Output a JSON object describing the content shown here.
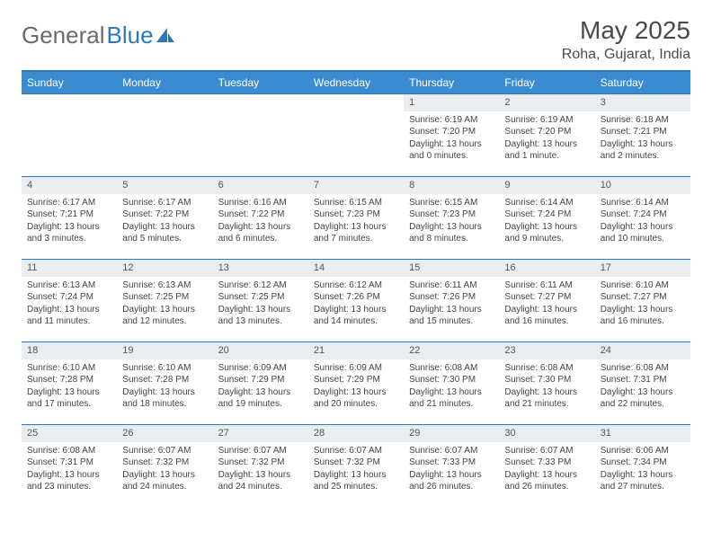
{
  "logo": {
    "word1": "General",
    "word2": "Blue",
    "gray": "#6b6b6b",
    "blue": "#2b78bf"
  },
  "title": {
    "month": "May 2025",
    "location": "Roha, Gujarat, India"
  },
  "colors": {
    "header_bg": "#3b8bd1",
    "header_text": "#ffffff",
    "border": "#2b78bf",
    "daynum_bg": "#e9edf0",
    "text": "#444444"
  },
  "day_headers": [
    "Sunday",
    "Monday",
    "Tuesday",
    "Wednesday",
    "Thursday",
    "Friday",
    "Saturday"
  ],
  "weeks": [
    [
      {
        "n": "",
        "sr": "",
        "ss": "",
        "dl": ""
      },
      {
        "n": "",
        "sr": "",
        "ss": "",
        "dl": ""
      },
      {
        "n": "",
        "sr": "",
        "ss": "",
        "dl": ""
      },
      {
        "n": "",
        "sr": "",
        "ss": "",
        "dl": ""
      },
      {
        "n": "1",
        "sr": "Sunrise: 6:19 AM",
        "ss": "Sunset: 7:20 PM",
        "dl": "Daylight: 13 hours and 0 minutes."
      },
      {
        "n": "2",
        "sr": "Sunrise: 6:19 AM",
        "ss": "Sunset: 7:20 PM",
        "dl": "Daylight: 13 hours and 1 minute."
      },
      {
        "n": "3",
        "sr": "Sunrise: 6:18 AM",
        "ss": "Sunset: 7:21 PM",
        "dl": "Daylight: 13 hours and 2 minutes."
      }
    ],
    [
      {
        "n": "4",
        "sr": "Sunrise: 6:17 AM",
        "ss": "Sunset: 7:21 PM",
        "dl": "Daylight: 13 hours and 3 minutes."
      },
      {
        "n": "5",
        "sr": "Sunrise: 6:17 AM",
        "ss": "Sunset: 7:22 PM",
        "dl": "Daylight: 13 hours and 5 minutes."
      },
      {
        "n": "6",
        "sr": "Sunrise: 6:16 AM",
        "ss": "Sunset: 7:22 PM",
        "dl": "Daylight: 13 hours and 6 minutes."
      },
      {
        "n": "7",
        "sr": "Sunrise: 6:15 AM",
        "ss": "Sunset: 7:23 PM",
        "dl": "Daylight: 13 hours and 7 minutes."
      },
      {
        "n": "8",
        "sr": "Sunrise: 6:15 AM",
        "ss": "Sunset: 7:23 PM",
        "dl": "Daylight: 13 hours and 8 minutes."
      },
      {
        "n": "9",
        "sr": "Sunrise: 6:14 AM",
        "ss": "Sunset: 7:24 PM",
        "dl": "Daylight: 13 hours and 9 minutes."
      },
      {
        "n": "10",
        "sr": "Sunrise: 6:14 AM",
        "ss": "Sunset: 7:24 PM",
        "dl": "Daylight: 13 hours and 10 minutes."
      }
    ],
    [
      {
        "n": "11",
        "sr": "Sunrise: 6:13 AM",
        "ss": "Sunset: 7:24 PM",
        "dl": "Daylight: 13 hours and 11 minutes."
      },
      {
        "n": "12",
        "sr": "Sunrise: 6:13 AM",
        "ss": "Sunset: 7:25 PM",
        "dl": "Daylight: 13 hours and 12 minutes."
      },
      {
        "n": "13",
        "sr": "Sunrise: 6:12 AM",
        "ss": "Sunset: 7:25 PM",
        "dl": "Daylight: 13 hours and 13 minutes."
      },
      {
        "n": "14",
        "sr": "Sunrise: 6:12 AM",
        "ss": "Sunset: 7:26 PM",
        "dl": "Daylight: 13 hours and 14 minutes."
      },
      {
        "n": "15",
        "sr": "Sunrise: 6:11 AM",
        "ss": "Sunset: 7:26 PM",
        "dl": "Daylight: 13 hours and 15 minutes."
      },
      {
        "n": "16",
        "sr": "Sunrise: 6:11 AM",
        "ss": "Sunset: 7:27 PM",
        "dl": "Daylight: 13 hours and 16 minutes."
      },
      {
        "n": "17",
        "sr": "Sunrise: 6:10 AM",
        "ss": "Sunset: 7:27 PM",
        "dl": "Daylight: 13 hours and 16 minutes."
      }
    ],
    [
      {
        "n": "18",
        "sr": "Sunrise: 6:10 AM",
        "ss": "Sunset: 7:28 PM",
        "dl": "Daylight: 13 hours and 17 minutes."
      },
      {
        "n": "19",
        "sr": "Sunrise: 6:10 AM",
        "ss": "Sunset: 7:28 PM",
        "dl": "Daylight: 13 hours and 18 minutes."
      },
      {
        "n": "20",
        "sr": "Sunrise: 6:09 AM",
        "ss": "Sunset: 7:29 PM",
        "dl": "Daylight: 13 hours and 19 minutes."
      },
      {
        "n": "21",
        "sr": "Sunrise: 6:09 AM",
        "ss": "Sunset: 7:29 PM",
        "dl": "Daylight: 13 hours and 20 minutes."
      },
      {
        "n": "22",
        "sr": "Sunrise: 6:08 AM",
        "ss": "Sunset: 7:30 PM",
        "dl": "Daylight: 13 hours and 21 minutes."
      },
      {
        "n": "23",
        "sr": "Sunrise: 6:08 AM",
        "ss": "Sunset: 7:30 PM",
        "dl": "Daylight: 13 hours and 21 minutes."
      },
      {
        "n": "24",
        "sr": "Sunrise: 6:08 AM",
        "ss": "Sunset: 7:31 PM",
        "dl": "Daylight: 13 hours and 22 minutes."
      }
    ],
    [
      {
        "n": "25",
        "sr": "Sunrise: 6:08 AM",
        "ss": "Sunset: 7:31 PM",
        "dl": "Daylight: 13 hours and 23 minutes."
      },
      {
        "n": "26",
        "sr": "Sunrise: 6:07 AM",
        "ss": "Sunset: 7:32 PM",
        "dl": "Daylight: 13 hours and 24 minutes."
      },
      {
        "n": "27",
        "sr": "Sunrise: 6:07 AM",
        "ss": "Sunset: 7:32 PM",
        "dl": "Daylight: 13 hours and 24 minutes."
      },
      {
        "n": "28",
        "sr": "Sunrise: 6:07 AM",
        "ss": "Sunset: 7:32 PM",
        "dl": "Daylight: 13 hours and 25 minutes."
      },
      {
        "n": "29",
        "sr": "Sunrise: 6:07 AM",
        "ss": "Sunset: 7:33 PM",
        "dl": "Daylight: 13 hours and 26 minutes."
      },
      {
        "n": "30",
        "sr": "Sunrise: 6:07 AM",
        "ss": "Sunset: 7:33 PM",
        "dl": "Daylight: 13 hours and 26 minutes."
      },
      {
        "n": "31",
        "sr": "Sunrise: 6:06 AM",
        "ss": "Sunset: 7:34 PM",
        "dl": "Daylight: 13 hours and 27 minutes."
      }
    ]
  ]
}
